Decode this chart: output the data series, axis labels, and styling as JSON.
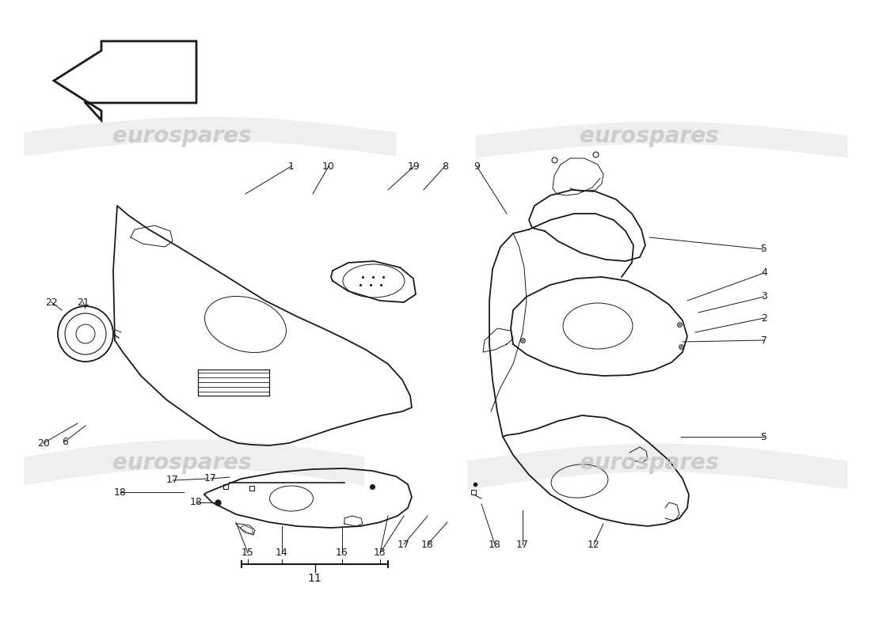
{
  "background_color": "#ffffff",
  "line_color": "#1a1a1a",
  "fig_width": 11.0,
  "fig_height": 8.0,
  "dpi": 100,
  "watermark_text": "eurospares"
}
